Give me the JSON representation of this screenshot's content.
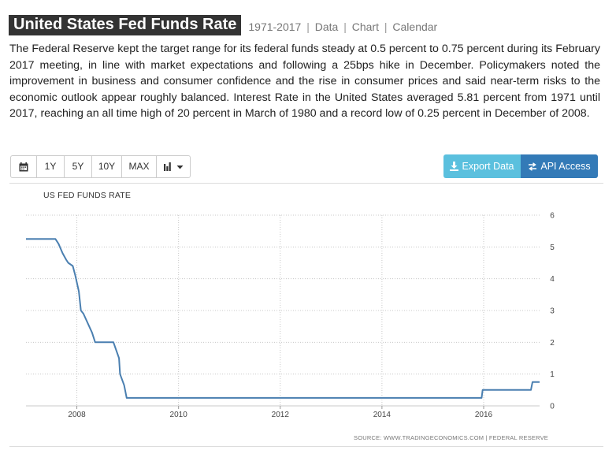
{
  "header": {
    "title": "United States Fed Funds Rate",
    "range": "1971-2017",
    "sep": "|",
    "links": [
      "Data",
      "Chart",
      "Calendar"
    ]
  },
  "description": "The Federal Reserve kept the target range for its federal funds steady at 0.5 percent to 0.75 percent during its February 2017 meeting, in line with market expectations and following a 25bps hike in December. Policymakers noted the improvement in business and consumer confidence and the rise in consumer prices and said near-term risks to the economic outlook appear roughly balanced. Interest Rate in the United States averaged 5.81 percent from 1971 until 2017, reaching an all time high of 20 percent in March of 1980 and a record low of 0.25 percent in December of 2008.",
  "toolbar": {
    "calendar_icon": "calendar-icon",
    "buttons": [
      "1Y",
      "5Y",
      "10Y",
      "MAX"
    ],
    "chart_type_icon": "bar-chart-icon"
  },
  "actions": {
    "export_label": "Export Data",
    "export_icon": "download-icon",
    "api_label": "API Access",
    "api_icon": "swap-arrows-icon"
  },
  "colors": {
    "title_bg": "#333333",
    "line": "#4a7fb0",
    "export_bg": "#5bc0de",
    "api_bg": "#337ab7"
  },
  "chart_data": {
    "type": "line",
    "title": "US FED FUNDS RATE",
    "source": "SOURCE: WWW.TRADINGECONOMICS.COM | FEDERAL RESERVE",
    "ylim": [
      0,
      6
    ],
    "yticks": [
      0,
      1,
      2,
      3,
      4,
      5,
      6
    ],
    "xlim": [
      2007.0,
      2017.1
    ],
    "xticks": [
      2008,
      2010,
      2012,
      2014,
      2016
    ],
    "grid": true,
    "series": [
      {
        "x": [
          2007.0,
          2007.58,
          2007.64,
          2007.72,
          2007.79,
          2007.83,
          2007.92,
          2007.97,
          2008.04,
          2008.08,
          2008.13,
          2008.3,
          2008.36,
          2008.72,
          2008.83,
          2008.85,
          2008.93,
          2008.98,
          2015.96,
          2015.98,
          2016.93,
          2016.96,
          2017.1
        ],
        "values": [
          5.25,
          5.25,
          5.1,
          4.8,
          4.6,
          4.5,
          4.4,
          4.1,
          3.6,
          3.0,
          2.9,
          2.3,
          2.0,
          2.0,
          1.5,
          1.0,
          0.65,
          0.25,
          0.25,
          0.5,
          0.5,
          0.75,
          0.75
        ]
      }
    ]
  }
}
